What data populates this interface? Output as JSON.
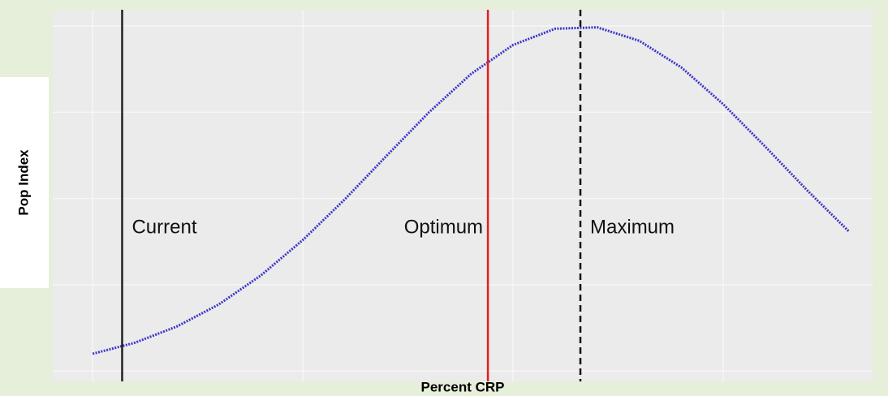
{
  "chart_data": {
    "type": "line",
    "y_label": "Pop Index",
    "x_label": "Percent CRP",
    "xlim": [
      -0.19,
      3.71
    ],
    "ylim": [
      -0.03,
      1.047
    ],
    "xticks": [
      0,
      1,
      2,
      3
    ],
    "yticks": [
      0,
      0.25,
      0.5,
      0.75,
      1
    ],
    "grid": true,
    "x": [
      0,
      0.2,
      0.4,
      0.6,
      0.8,
      1.0,
      1.2,
      1.4,
      1.6,
      1.8,
      2.0,
      2.2,
      2.4,
      2.6,
      2.8,
      3.0,
      3.2,
      3.4,
      3.6
    ],
    "series": [
      {
        "color": "#3a35c8",
        "values": [
          0.05,
          0.082,
          0.129,
          0.193,
          0.277,
          0.38,
          0.498,
          0.625,
          0.75,
          0.861,
          0.945,
          0.992,
          0.996,
          0.957,
          0.88,
          0.773,
          0.65,
          0.523,
          0.403
        ]
      }
    ],
    "markers": [
      {
        "label": "Current",
        "x": 0.14,
        "color": "#222222",
        "linestyle": "solid",
        "label_side": "right"
      },
      {
        "label": "Optimum",
        "x": 1.88,
        "color": "#e02020",
        "linestyle": "solid",
        "label_side": "left"
      },
      {
        "label": "Maximum",
        "x": 2.32,
        "color": "#111111",
        "linestyle": "dashed",
        "label_side": "right"
      }
    ]
  }
}
